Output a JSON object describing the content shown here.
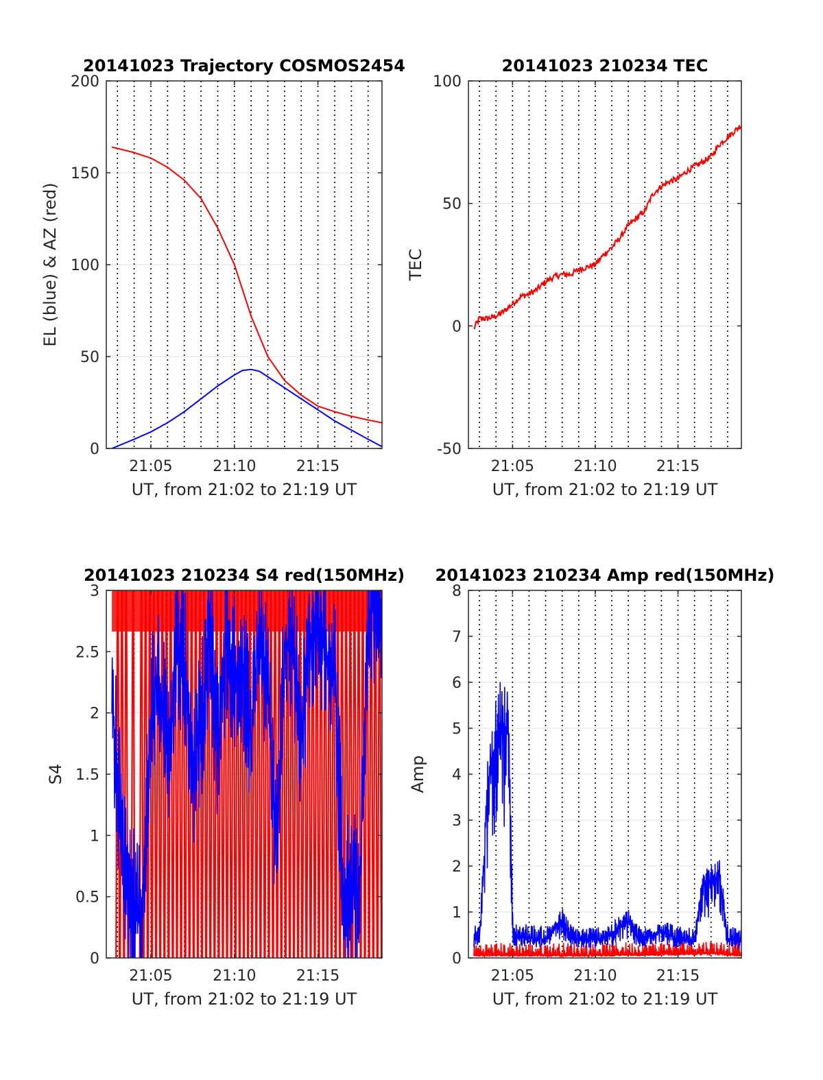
{
  "figure": {
    "background": "#ffffff",
    "colors": {
      "red": "#ff0000",
      "blue": "#0000ff",
      "grid": "#dedede",
      "axis": "#262626"
    }
  },
  "chart_data": [
    {
      "id": "trajectory",
      "type": "line",
      "title": "20141023 Trajectory COSMOS2454",
      "xlabel": "UT, from 21:02 to 21:19 UT",
      "ylabel": "EL (blue) & AZ (red)",
      "xlim": [
        "21:02:20",
        "21:18:50"
      ],
      "ylim": [
        0,
        200
      ],
      "xticks": [
        "21:05",
        "21:10",
        "21:15"
      ],
      "yticks": [
        0,
        50,
        100,
        150,
        200
      ],
      "grid": true,
      "series": [
        {
          "color": "#ff0000",
          "points": [
            [
              "21:02:40",
              164
            ],
            [
              "21:04:00",
              161
            ],
            [
              "21:05:00",
              158
            ],
            [
              "21:06:00",
              153
            ],
            [
              "21:07:00",
              146
            ],
            [
              "21:08:00",
              136
            ],
            [
              "21:09:00",
              120
            ],
            [
              "21:10:00",
              100
            ],
            [
              "21:10:30",
              86
            ],
            [
              "21:11:00",
              72
            ],
            [
              "21:12:00",
              50
            ],
            [
              "21:13:00",
              37
            ],
            [
              "21:14:00",
              29
            ],
            [
              "21:15:00",
              23
            ],
            [
              "21:16:00",
              20
            ],
            [
              "21:17:00",
              17.5
            ],
            [
              "21:18:00",
              15.5
            ],
            [
              "21:18:50",
              14
            ]
          ]
        },
        {
          "color": "#0000ff",
          "points": [
            [
              "21:02:40",
              0
            ],
            [
              "21:04:00",
              5
            ],
            [
              "21:05:00",
              9
            ],
            [
              "21:06:00",
              14
            ],
            [
              "21:07:00",
              20
            ],
            [
              "21:08:00",
              27
            ],
            [
              "21:09:00",
              34
            ],
            [
              "21:10:00",
              40
            ],
            [
              "21:10:30",
              42.5
            ],
            [
              "21:11:00",
              43
            ],
            [
              "21:11:30",
              42
            ],
            [
              "21:12:00",
              39
            ],
            [
              "21:13:00",
              33
            ],
            [
              "21:14:00",
              27
            ],
            [
              "21:15:00",
              21
            ],
            [
              "21:16:00",
              15
            ],
            [
              "21:17:00",
              10
            ],
            [
              "21:18:00",
              5
            ],
            [
              "21:18:50",
              1
            ]
          ]
        }
      ]
    },
    {
      "id": "tec",
      "type": "line",
      "title": "20141023 210234 TEC",
      "xlabel": "UT, from 21:02 to 21:19 UT",
      "ylabel": "TEC",
      "xlim": [
        "21:02:20",
        "21:18:50"
      ],
      "ylim": [
        -50,
        100
      ],
      "xticks": [
        "21:05",
        "21:10",
        "21:15"
      ],
      "yticks": [
        -50,
        0,
        50,
        100
      ],
      "grid": true,
      "series": [
        {
          "color": "#ff0000",
          "noise": 1.2,
          "points": [
            [
              "21:02:40",
              -1
            ],
            [
              "21:03:00",
              3
            ],
            [
              "21:03:30",
              3
            ],
            [
              "21:04:00",
              4
            ],
            [
              "21:04:30",
              6
            ],
            [
              "21:05:00",
              9
            ],
            [
              "21:05:30",
              12
            ],
            [
              "21:06:00",
              13
            ],
            [
              "21:06:30",
              15
            ],
            [
              "21:07:00",
              18
            ],
            [
              "21:07:30",
              20
            ],
            [
              "21:08:00",
              21
            ],
            [
              "21:08:30",
              21
            ],
            [
              "21:09:00",
              23
            ],
            [
              "21:09:30",
              24
            ],
            [
              "21:10:00",
              25
            ],
            [
              "21:10:30",
              29
            ],
            [
              "21:11:00",
              32
            ],
            [
              "21:11:30",
              36
            ],
            [
              "21:12:00",
              41
            ],
            [
              "21:12:30",
              44
            ],
            [
              "21:13:00",
              47
            ],
            [
              "21:13:30",
              54
            ],
            [
              "21:14:00",
              57
            ],
            [
              "21:14:30",
              59
            ],
            [
              "21:15:00",
              60
            ],
            [
              "21:15:30",
              63
            ],
            [
              "21:16:00",
              65
            ],
            [
              "21:16:30",
              67
            ],
            [
              "21:17:00",
              69
            ],
            [
              "21:17:30",
              74
            ],
            [
              "21:18:00",
              77
            ],
            [
              "21:18:50",
              82
            ]
          ]
        }
      ]
    },
    {
      "id": "s4",
      "type": "line",
      "title": "20141023 210234 S4 red(150MHz)",
      "xlabel": "UT, from 21:02 to 21:19 UT",
      "ylabel": "S4",
      "xlim": [
        "21:02:20",
        "21:18:50"
      ],
      "ylim": [
        0,
        3
      ],
      "xticks": [
        "21:05",
        "21:10",
        "21:15"
      ],
      "yticks": [
        0,
        0.5,
        1,
        1.5,
        2,
        2.5,
        3
      ],
      "grid": true,
      "series": [
        {
          "color": "#ff0000",
          "style": "spikes",
          "spikes_to_zero": [
            "21:02:55",
            "21:03:10",
            "21:03:25",
            "21:03:50",
            "21:04:20",
            "21:04:35",
            "21:04:50",
            "21:05:05",
            "21:05:20",
            "21:05:35",
            "21:05:50",
            "21:06:05",
            "21:06:20",
            "21:06:35",
            "21:06:50",
            "21:07:05",
            "21:07:20",
            "21:07:35",
            "21:07:50",
            "21:08:05",
            "21:08:20",
            "21:08:35",
            "21:08:50",
            "21:09:05",
            "21:09:20",
            "21:09:35",
            "21:09:50",
            "21:10:05",
            "21:10:20",
            "21:10:35",
            "21:10:50",
            "21:11:05",
            "21:11:20",
            "21:11:35",
            "21:11:50",
            "21:12:05",
            "21:12:20",
            "21:12:35",
            "21:12:50",
            "21:13:05",
            "21:13:20",
            "21:13:35",
            "21:13:50",
            "21:14:05",
            "21:14:20",
            "21:14:35",
            "21:14:50",
            "21:15:05",
            "21:15:20",
            "21:15:35",
            "21:15:50",
            "21:16:05",
            "21:16:20",
            "21:16:35",
            "21:16:50",
            "21:17:05",
            "21:17:20",
            "21:17:35",
            "21:17:50",
            "21:18:05",
            "21:18:20",
            "21:18:35"
          ]
        },
        {
          "color": "#0000ff",
          "style": "noise",
          "points": [
            [
              "21:02:40",
              2.2
            ],
            [
              "21:03:00",
              1.4
            ],
            [
              "21:03:30",
              0.6
            ],
            [
              "21:04:00",
              0.4
            ],
            [
              "21:04:30",
              0.35
            ],
            [
              "21:05:00",
              2.1
            ],
            [
              "21:05:30",
              2.3
            ],
            [
              "21:06:00",
              1.6
            ],
            [
              "21:06:30",
              2.5
            ],
            [
              "21:07:00",
              2.4
            ],
            [
              "21:07:30",
              1.5
            ],
            [
              "21:08:00",
              1.9
            ],
            [
              "21:08:30",
              2.7
            ],
            [
              "21:09:00",
              1.7
            ],
            [
              "21:09:30",
              2.6
            ],
            [
              "21:10:00",
              2.3
            ],
            [
              "21:10:30",
              2.4
            ],
            [
              "21:11:00",
              1.8
            ],
            [
              "21:11:30",
              2.7
            ],
            [
              "21:12:00",
              2.1
            ],
            [
              "21:12:30",
              0.9
            ],
            [
              "21:13:00",
              2.6
            ],
            [
              "21:13:30",
              2.5
            ],
            [
              "21:14:00",
              1.8
            ],
            [
              "21:14:30",
              2.6
            ],
            [
              "21:15:00",
              2.8
            ],
            [
              "21:15:30",
              2.4
            ],
            [
              "21:16:00",
              2.3
            ],
            [
              "21:16:30",
              0.55
            ],
            [
              "21:17:00",
              0.55
            ],
            [
              "21:17:30",
              0.5
            ],
            [
              "21:18:00",
              2.8
            ],
            [
              "21:18:50",
              2.9
            ]
          ]
        }
      ]
    },
    {
      "id": "amp",
      "type": "line",
      "title": "20141023 210234 Amp red(150MHz)",
      "xlabel": "UT, from 21:02 to 21:19 UT",
      "ylabel": "Amp",
      "xlim": [
        "21:02:20",
        "21:18:50"
      ],
      "ylim": [
        0,
        8
      ],
      "xticks": [
        "21:05",
        "21:10",
        "21:15"
      ],
      "yticks": [
        0,
        1,
        2,
        3,
        4,
        5,
        6,
        7,
        8
      ],
      "grid": true,
      "series": [
        {
          "color": "#ff0000",
          "style": "noise",
          "points": [
            [
              "21:02:40",
              0.05
            ],
            [
              "21:10:00",
              0.05
            ],
            [
              "21:17:00",
              0.1
            ],
            [
              "21:18:50",
              0.05
            ]
          ]
        },
        {
          "color": "#0000ff",
          "style": "noise",
          "points": [
            [
              "21:02:40",
              0.4
            ],
            [
              "21:03:00",
              0.5
            ],
            [
              "21:03:30",
              3.8
            ],
            [
              "21:04:00",
              4.8
            ],
            [
              "21:04:20",
              5.2
            ],
            [
              "21:04:45",
              4.9
            ],
            [
              "21:05:00",
              0.5
            ],
            [
              "21:06:00",
              0.45
            ],
            [
              "21:07:00",
              0.4
            ],
            [
              "21:08:00",
              0.8
            ],
            [
              "21:08:30",
              0.45
            ],
            [
              "21:09:00",
              0.4
            ],
            [
              "21:10:00",
              0.4
            ],
            [
              "21:11:00",
              0.5
            ],
            [
              "21:12:00",
              0.8
            ],
            [
              "21:12:30",
              0.45
            ],
            [
              "21:13:00",
              0.4
            ],
            [
              "21:14:00",
              0.6
            ],
            [
              "21:15:00",
              0.4
            ],
            [
              "21:16:00",
              0.35
            ],
            [
              "21:16:30",
              1.6
            ],
            [
              "21:17:30",
              1.8
            ],
            [
              "21:18:00",
              0.4
            ],
            [
              "21:18:50",
              0.35
            ]
          ]
        }
      ]
    }
  ]
}
